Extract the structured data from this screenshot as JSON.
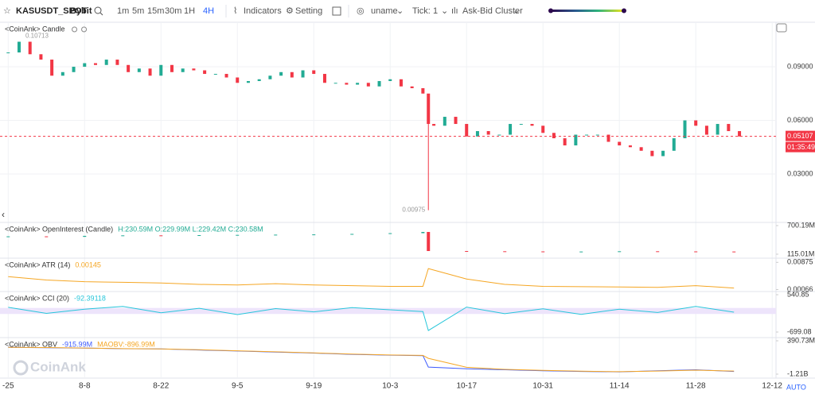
{
  "toolbar": {
    "symbol": "KASUSDT_SPOT",
    "exchange": "Bybit",
    "intervals": [
      "1m",
      "5m",
      "15m",
      "30m",
      "1H",
      "4H"
    ],
    "active_interval": 5,
    "indicators": "Indicators",
    "setting": "Setting",
    "user": "uname",
    "tick_label": "Tick:",
    "tick_value": "1",
    "cluster": "Ask-Bid Cluster"
  },
  "watermark": "CoinAnk",
  "auto": "AUTO",
  "chart_data": [
    {
      "type": "candlestick",
      "legend": "<CoinAnk> Candle",
      "up_color": "#22ab94",
      "down_color": "#f23645",
      "xlim": [
        -1.5,
        140.7
      ],
      "ylim": [
        0.0038,
        0.1149
      ],
      "yticks": [
        {
          "value": 0.09,
          "label": "0.09000"
        },
        {
          "value": 0.06,
          "label": "0.06000"
        },
        {
          "value": 0.03,
          "label": "0.03000"
        }
      ],
      "high": 0.10713,
      "low": 0.00975,
      "low_x": 77,
      "last_price": 0.05107,
      "countdown": "01:35:49",
      "x": [
        0,
        2,
        4,
        6,
        8,
        10,
        12,
        14,
        16,
        18,
        20,
        22,
        24,
        26,
        28,
        30,
        32,
        34,
        36,
        38,
        40,
        42,
        44,
        46,
        48,
        50,
        52,
        54,
        56,
        58,
        60,
        62,
        64,
        66,
        68,
        70,
        72,
        74,
        76,
        77,
        78,
        80,
        82,
        84,
        86,
        88,
        90,
        92,
        94,
        96,
        98,
        100,
        102,
        104,
        106,
        108,
        110,
        112,
        114,
        116,
        118,
        120,
        122,
        124,
        126,
        128,
        130,
        132,
        134
      ],
      "values": [
        0.098,
        0.104,
        0.097,
        0.094,
        0.085,
        0.087,
        0.09,
        0.092,
        0.091,
        0.094,
        0.091,
        0.087,
        0.089,
        0.085,
        0.091,
        0.087,
        0.089,
        0.088,
        0.086,
        0.086,
        0.084,
        0.081,
        0.082,
        0.083,
        0.085,
        0.087,
        0.084,
        0.088,
        0.086,
        0.081,
        0.081,
        0.08,
        0.081,
        0.079,
        0.082,
        0.083,
        0.079,
        0.078,
        0.075,
        0.058,
        0.057,
        0.062,
        0.058,
        0.051,
        0.054,
        0.052,
        0.052,
        0.058,
        0.058,
        0.057,
        0.053,
        0.05,
        0.046,
        0.052,
        0.052,
        0.052,
        0.048,
        0.046,
        0.045,
        0.043,
        0.04,
        0.043,
        0.05,
        0.06,
        0.057,
        0.052,
        0.058,
        0.054,
        0.051
      ]
    },
    {
      "type": "candlestick",
      "legend": "<CoinAnk> OpenInterest (Candle)",
      "legend_value": "H:230.59M O:229.99M L:229.42M C:230.58M",
      "legend_color": "#22ab94",
      "up_color": "#22ab94",
      "down_color": "#f23645",
      "xlim": [
        -1.5,
        140.7
      ],
      "ylim": [
        34,
        765
      ],
      "yticks": [
        {
          "value": 700.19,
          "label": "700.19M"
        },
        {
          "value": 115.01,
          "label": "115.01M"
        }
      ],
      "x": [
        0,
        7,
        14,
        21,
        28,
        35,
        42,
        49,
        56,
        63,
        70,
        76,
        77,
        84,
        91,
        98,
        105,
        112,
        119,
        126,
        133
      ],
      "values": [
        480,
        470,
        490,
        500,
        495,
        505,
        510,
        515,
        520,
        530,
        545,
        570,
        180,
        175,
        172,
        165,
        170,
        175,
        172,
        170,
        168
      ]
    },
    {
      "type": "line",
      "legend": "<CoinAnk> ATR  (14)",
      "legend_value": "0.00145",
      "legend_color": "#f5a623",
      "xlim": [
        -1.5,
        140.7
      ],
      "ylim": [
        6e-05,
        0.01
      ],
      "yticks": [
        0.00875,
        0.00066
      ],
      "x": [
        0,
        7,
        14,
        21,
        28,
        35,
        42,
        49,
        56,
        63,
        70,
        76,
        77,
        84,
        91,
        98,
        105,
        112,
        119,
        126,
        133
      ],
      "series": [
        {
          "color": "#f5a623",
          "values": [
            0.0045,
            0.0035,
            0.003,
            0.0028,
            0.0026,
            0.0022,
            0.002,
            0.0024,
            0.002,
            0.0018,
            0.0016,
            0.0016,
            0.0069,
            0.0038,
            0.0022,
            0.0016,
            0.0015,
            0.0014,
            0.0013,
            0.0018,
            0.0011
          ]
        }
      ]
    },
    {
      "type": "line",
      "legend": "<CoinAnk> CCI  (20)",
      "legend_value": "-92.39118",
      "legend_color": "#26c6da",
      "xlim": [
        -1.5,
        140.7
      ],
      "ylim": [
        -884,
        646
      ],
      "yticks": [
        540.85,
        -699.08
      ],
      "band": [
        -100,
        100
      ],
      "x": [
        0,
        7,
        14,
        21,
        28,
        35,
        42,
        49,
        56,
        63,
        70,
        76,
        77,
        84,
        91,
        98,
        105,
        112,
        119,
        126,
        133
      ],
      "series": [
        {
          "color": "#26c6da",
          "values": [
            120,
            -80,
            60,
            150,
            -60,
            90,
            -120,
            80,
            -30,
            110,
            40,
            -20,
            -650,
            130,
            -90,
            70,
            -110,
            60,
            -50,
            150,
            -40
          ]
        }
      ]
    },
    {
      "type": "line",
      "legend": "<CoinAnk> OBV",
      "legend_value": "-915.99M",
      "legend_extra": "MAOBV:-896.99M",
      "legend_color": "#3d5afe",
      "legend_extra_color": "#f5a623",
      "xlim": [
        -1.5,
        140.7
      ],
      "ylim": [
        -1400,
        543
      ],
      "yticks": [
        {
          "value": 390.73,
          "label": "390.73M"
        },
        {
          "value": -1210,
          "label": "-1.21B"
        }
      ],
      "xticks": [
        {
          "value": 0,
          "label": "-25"
        },
        {
          "value": 14,
          "label": "8-8"
        },
        {
          "value": 28,
          "label": "8-22"
        },
        {
          "value": 42,
          "label": "9-5"
        },
        {
          "value": 56,
          "label": "9-19"
        },
        {
          "value": 70,
          "label": "10-3"
        },
        {
          "value": 84,
          "label": "10-17"
        },
        {
          "value": 98,
          "label": "10-31"
        },
        {
          "value": 112,
          "label": "11-14"
        },
        {
          "value": 126,
          "label": "11-28"
        },
        {
          "value": 140,
          "label": "12-12"
        }
      ],
      "x": [
        0,
        7,
        14,
        21,
        28,
        35,
        42,
        49,
        56,
        63,
        70,
        76,
        77,
        84,
        91,
        98,
        105,
        112,
        119,
        126,
        133
      ],
      "series": [
        {
          "color": "#3d5afe",
          "values": [
            80,
            60,
            40,
            10,
            0,
            -50,
            -100,
            -150,
            -200,
            -260,
            -300,
            -320,
            -870,
            -950,
            -1000,
            -1050,
            -1080,
            -1100,
            -1050,
            -1000,
            -1080
          ]
        },
        {
          "color": "#f5a623",
          "values": [
            80,
            65,
            45,
            15,
            0,
            -40,
            -90,
            -140,
            -190,
            -250,
            -290,
            -310,
            -450,
            -880,
            -980,
            -1030,
            -1070,
            -1090,
            -1060,
            -1020,
            -1060
          ]
        }
      ]
    }
  ]
}
